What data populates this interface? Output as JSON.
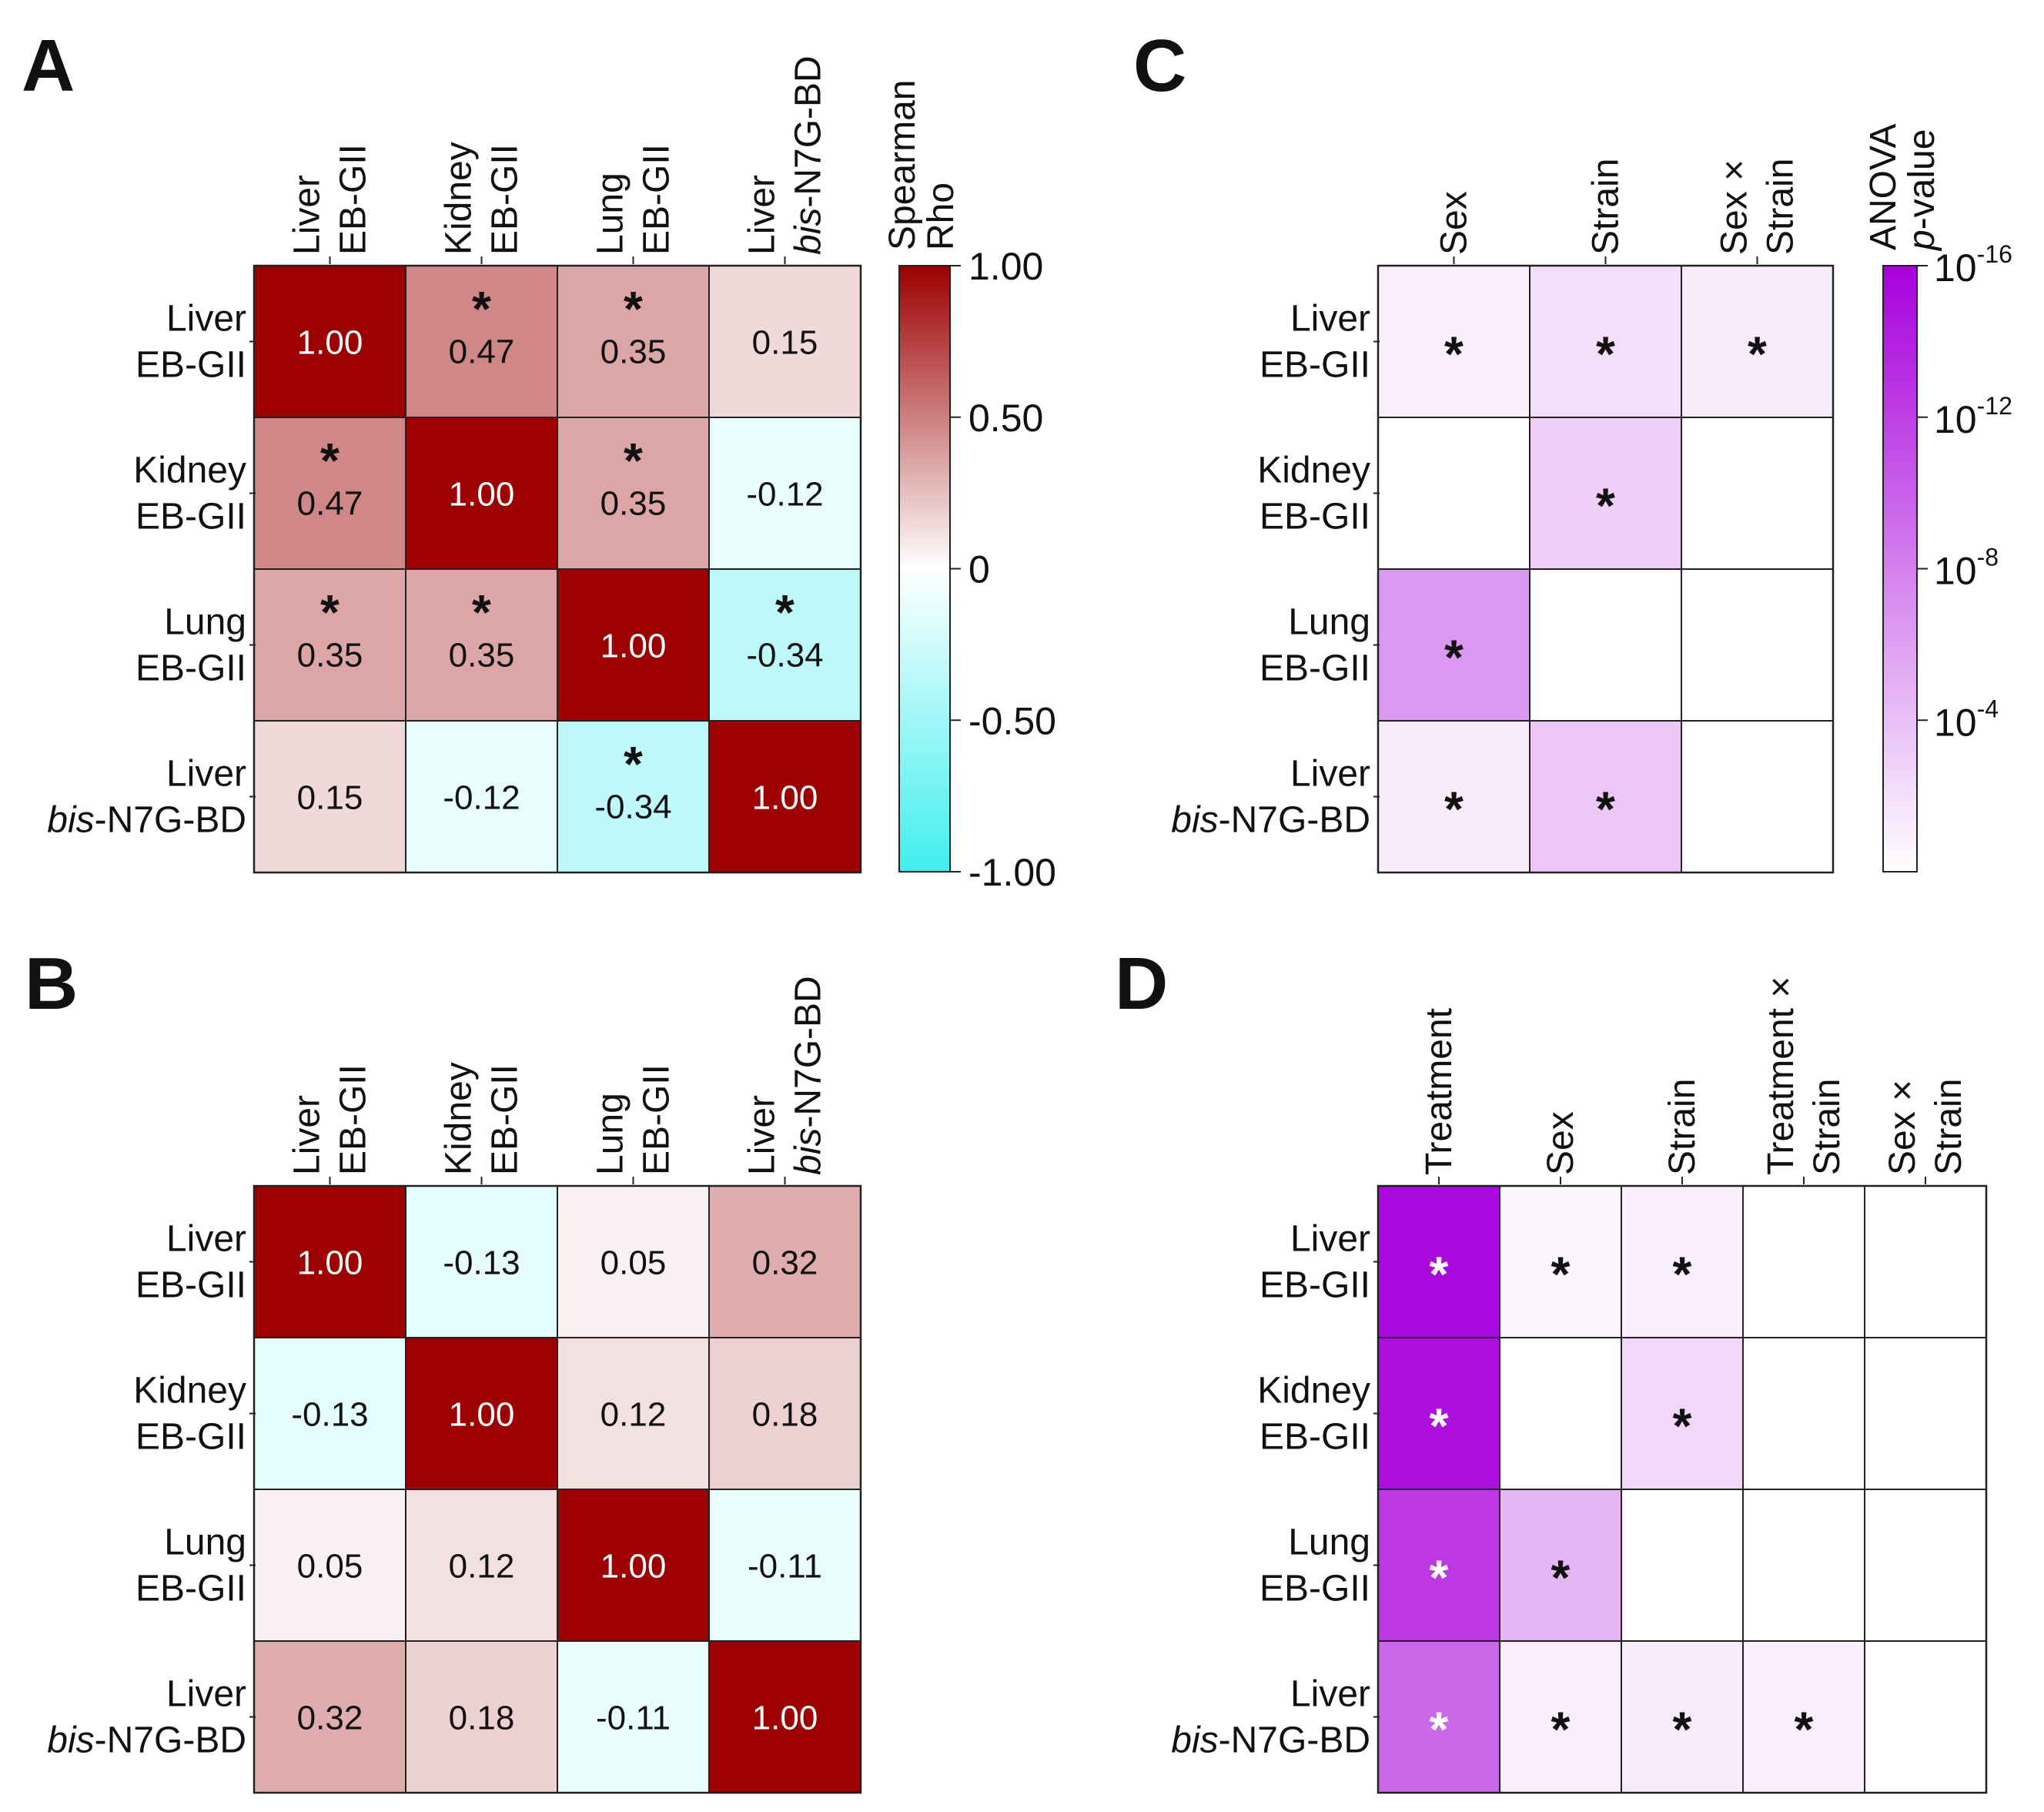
{
  "chart_data": [
    {
      "panel": "A",
      "type": "heatmap",
      "rows": [
        [
          "Liver",
          "EB-GII"
        ],
        [
          "Kidney",
          "EB-GII"
        ],
        [
          "Lung",
          "EB-GII"
        ],
        [
          "Liver",
          "bis-N7G-BD"
        ]
      ],
      "columns": [
        [
          "Liver",
          "EB-GII"
        ],
        [
          "Kidney",
          "EB-GII"
        ],
        [
          "Lung",
          "EB-GII"
        ],
        [
          "Liver",
          "bis-N7G-BD"
        ]
      ],
      "values": [
        [
          1.0,
          0.47,
          0.35,
          0.15
        ],
        [
          0.47,
          1.0,
          0.35,
          -0.12
        ],
        [
          0.35,
          0.35,
          1.0,
          -0.34
        ],
        [
          0.15,
          -0.12,
          -0.34,
          1.0
        ]
      ],
      "labels": [
        [
          "1.00",
          "0.47",
          "0.35",
          "0.15"
        ],
        [
          "0.47",
          "1.00",
          "0.35",
          "-0.12"
        ],
        [
          "0.35",
          "0.35",
          "1.00",
          "-0.34"
        ],
        [
          "0.15",
          "-0.12",
          "-0.34",
          "1.00"
        ]
      ],
      "significant": [
        [
          false,
          true,
          true,
          false
        ],
        [
          true,
          false,
          true,
          false
        ],
        [
          true,
          true,
          false,
          true
        ],
        [
          false,
          false,
          true,
          false
        ]
      ],
      "star_symbol": "*",
      "colorbar": {
        "title": [
          "Spearman",
          "Rho"
        ],
        "range": [
          -1.0,
          1.0
        ],
        "ticks": [
          "1.00",
          "0.50",
          "0",
          "-0.50",
          "-1.00"
        ],
        "tick_values": [
          1.0,
          0.5,
          0,
          -0.5,
          -1.0
        ],
        "colors": {
          "high": "#9c0000",
          "mid": "#ffffff",
          "low": "#40eeee"
        }
      }
    },
    {
      "panel": "B",
      "type": "heatmap",
      "rows": [
        [
          "Liver",
          "EB-GII"
        ],
        [
          "Kidney",
          "EB-GII"
        ],
        [
          "Lung",
          "EB-GII"
        ],
        [
          "Liver",
          "bis-N7G-BD"
        ]
      ],
      "columns": [
        [
          "Liver",
          "EB-GII"
        ],
        [
          "Kidney",
          "EB-GII"
        ],
        [
          "Lung",
          "EB-GII"
        ],
        [
          "Liver",
          "bis-N7G-BD"
        ]
      ],
      "values": [
        [
          1.0,
          -0.13,
          0.05,
          0.32
        ],
        [
          -0.13,
          1.0,
          0.12,
          0.18
        ],
        [
          0.05,
          0.12,
          1.0,
          -0.11
        ],
        [
          0.32,
          0.18,
          -0.11,
          1.0
        ]
      ],
      "labels": [
        [
          "1.00",
          "-0.13",
          "0.05",
          "0.32"
        ],
        [
          "-0.13",
          "1.00",
          "0.12",
          "0.18"
        ],
        [
          "0.05",
          "0.12",
          "1.00",
          "-0.11"
        ],
        [
          "0.32",
          "0.18",
          "-0.11",
          "1.00"
        ]
      ],
      "colorbar_ref": "A"
    },
    {
      "panel": "C",
      "type": "heatmap",
      "rows": [
        [
          "Liver",
          "EB-GII"
        ],
        [
          "Kidney",
          "EB-GII"
        ],
        [
          "Lung",
          "EB-GII"
        ],
        [
          "Liver",
          "bis-N7G-BD"
        ]
      ],
      "columns": [
        [
          "Sex"
        ],
        [
          "Strain"
        ],
        [
          "Sex ×",
          "Strain"
        ]
      ],
      "neg_log10_p": [
        [
          1.0,
          2.0,
          1.2
        ],
        [
          0,
          3.0,
          0
        ],
        [
          6.5,
          0,
          0
        ],
        [
          1.2,
          3.6,
          0
        ]
      ],
      "significant": [
        [
          true,
          true,
          true
        ],
        [
          false,
          true,
          false
        ],
        [
          true,
          false,
          false
        ],
        [
          true,
          true,
          false
        ]
      ],
      "star_symbol": "*",
      "colorbar": {
        "title": [
          "ANOVA",
          "p-value"
        ],
        "range_neg_log10": [
          0,
          16
        ],
        "ticks": [
          {
            "base": "10",
            "exp": "-16",
            "value": 16
          },
          {
            "base": "10",
            "exp": "-12",
            "value": 12
          },
          {
            "base": "10",
            "exp": "-8",
            "value": 8
          },
          {
            "base": "10",
            "exp": "-4",
            "value": 4
          }
        ],
        "colors": {
          "high": "#a800dc",
          "low": "#ffffff"
        }
      }
    },
    {
      "panel": "D",
      "type": "heatmap",
      "rows": [
        [
          "Liver",
          "EB-GII"
        ],
        [
          "Kidney",
          "EB-GII"
        ],
        [
          "Lung",
          "EB-GII"
        ],
        [
          "Liver",
          "bis-N7G-BD"
        ]
      ],
      "columns": [
        [
          "Treatment"
        ],
        [
          "Sex"
        ],
        [
          "Strain"
        ],
        [
          "Treatment ×",
          "Strain"
        ],
        [
          "Sex ×",
          "Strain"
        ]
      ],
      "neg_log10_p": [
        [
          15.5,
          0.5,
          1.0,
          0,
          0
        ],
        [
          15.0,
          0,
          2.5,
          0,
          0
        ],
        [
          12.5,
          4.5,
          0,
          0,
          0
        ],
        [
          9.5,
          1.0,
          1.2,
          1.0,
          0
        ]
      ],
      "significant": [
        [
          true,
          true,
          true,
          false,
          false
        ],
        [
          true,
          false,
          true,
          false,
          false
        ],
        [
          true,
          true,
          false,
          false,
          false
        ],
        [
          true,
          true,
          true,
          true,
          false
        ]
      ],
      "star_symbol": "*",
      "colorbar_ref": "C"
    }
  ]
}
